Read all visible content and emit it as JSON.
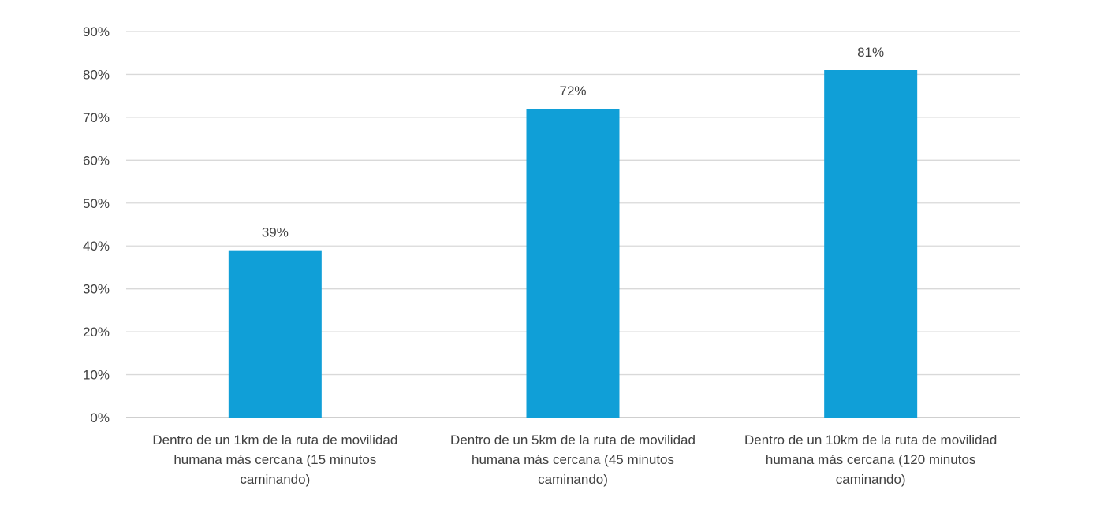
{
  "chart_data": {
    "type": "bar",
    "title": "",
    "xlabel": "",
    "ylabel": "",
    "categories": [
      [
        "Dentro de un 1km de la ruta de movilidad",
        "humana más cercana  (15 minutos",
        "caminando)"
      ],
      [
        "Dentro de un 5km de la ruta de movilidad",
        "humana más cercana  (45 minutos",
        "caminando)"
      ],
      [
        "Dentro de un 10km de la ruta de movilidad",
        "humana más cercana  (120 minutos",
        "caminando)"
      ]
    ],
    "values": [
      39,
      72,
      81
    ],
    "data_labels": [
      "39%",
      "72%",
      "81%"
    ],
    "ylim": [
      0,
      90
    ],
    "y_ticks": [
      0,
      10,
      20,
      30,
      40,
      50,
      60,
      70,
      80,
      90
    ],
    "y_tick_labels": [
      "0%",
      "10%",
      "20%",
      "30%",
      "40%",
      "50%",
      "60%",
      "70%",
      "80%",
      "90%"
    ],
    "grid": true,
    "legend": "none",
    "colors": {
      "bar": "#109FD7",
      "grid": "#D9D9D9",
      "axis": "#BFBFBF",
      "text": "#404040"
    }
  }
}
